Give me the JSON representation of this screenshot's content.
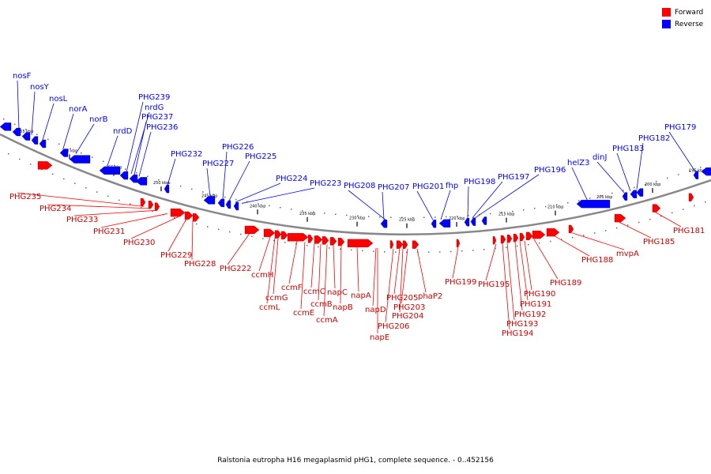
{
  "legend": {
    "forward_label": "Forward",
    "reverse_label": "Reverse",
    "forward_color": "#ff0000",
    "reverse_color": "#0000ff"
  },
  "caption": "Ralstonia eutropha H16 megaplasmid pHG1, complete sequence. - 0..452156",
  "backbone_color": "#888888",
  "scale_ticks": [
    "265 kbp",
    "260 kbp",
    "255 kbp",
    "250 kbp",
    "245 kbp",
    "240 kbp",
    "235 kbp",
    "230 kbp",
    "225 kbp",
    "220 kbp",
    "215 kbp",
    "210 kbp",
    "205 kbp",
    "200 kbp",
    "195 kbp"
  ],
  "reverse_genes": [
    "nosF",
    "nosY",
    "nosL",
    "norA",
    "norB",
    "nrdD",
    "PHG239",
    "nrdG",
    "PHG237",
    "PHG236",
    "PHG232",
    "PHG227",
    "PHG226",
    "PHG225",
    "PHG224",
    "PHG223",
    "PHG208",
    "PHG207",
    "PHG201",
    "fhp",
    "PHG198",
    "PHG197",
    "PHG196",
    "helZ3",
    "dinJ",
    "PHG183",
    "PHG182",
    "PHG179"
  ],
  "forward_genes": [
    "PHG235",
    "PHG234",
    "PHG233",
    "PHG231",
    "PHG230",
    "PHG229",
    "PHG228",
    "PHG222",
    "ccmH",
    "ccmG",
    "ccmL",
    "ccmF",
    "ccmE",
    "ccmC",
    "ccmB",
    "ccmA",
    "napC",
    "napB",
    "napA",
    "napD",
    "napE",
    "PHG206",
    "PHG205",
    "PHG204",
    "PHG203",
    "phaP2",
    "PHG199",
    "PHG195",
    "PHG194",
    "PHG193",
    "PHG192",
    "PHG191",
    "PHG190",
    "PHG189",
    "PHG188",
    "mvpA",
    "PHG185",
    "PHG181"
  ]
}
